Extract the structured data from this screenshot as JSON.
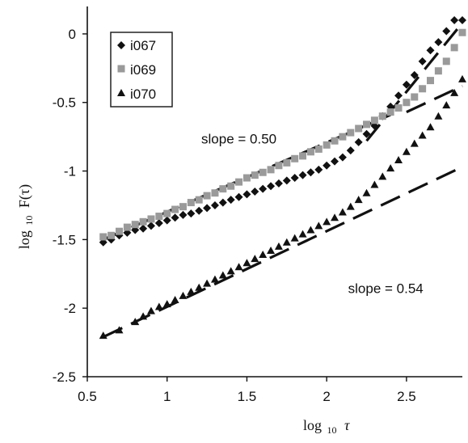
{
  "chart_data": {
    "type": "scatter",
    "title": "",
    "xlabel": {
      "base": "log",
      "sub": "10",
      "symbol": "τ"
    },
    "ylabel": {
      "base": "log",
      "sub": "10",
      "func": "F(τ)"
    },
    "xlim": [
      0.5,
      2.85
    ],
    "ylim": [
      -2.5,
      0.2
    ],
    "xticks": [
      0.5,
      1,
      1.5,
      2,
      2.5
    ],
    "yticks": [
      0,
      -0.5,
      -1,
      -1.5,
      -2,
      -2.5
    ],
    "xtick_labels": [
      "0.5",
      "1",
      "1.5",
      "2",
      "2.5"
    ],
    "ytick_labels": [
      "0",
      "-0.5",
      "-1",
      "-1.5",
      "-2",
      "-2.5"
    ],
    "grid": false,
    "legend_position": "top-left",
    "series": [
      {
        "name": "i067",
        "marker": "diamond",
        "color": "#111111",
        "points": [
          [
            0.6,
            -1.52
          ],
          [
            0.65,
            -1.5
          ],
          [
            0.7,
            -1.47
          ],
          [
            0.75,
            -1.45
          ],
          [
            0.8,
            -1.43
          ],
          [
            0.85,
            -1.42
          ],
          [
            0.9,
            -1.4
          ],
          [
            0.95,
            -1.38
          ],
          [
            1.0,
            -1.36
          ],
          [
            1.05,
            -1.34
          ],
          [
            1.1,
            -1.32
          ],
          [
            1.15,
            -1.31
          ],
          [
            1.2,
            -1.29
          ],
          [
            1.25,
            -1.27
          ],
          [
            1.3,
            -1.25
          ],
          [
            1.35,
            -1.23
          ],
          [
            1.4,
            -1.21
          ],
          [
            1.45,
            -1.19
          ],
          [
            1.5,
            -1.17
          ],
          [
            1.55,
            -1.15
          ],
          [
            1.6,
            -1.13
          ],
          [
            1.65,
            -1.11
          ],
          [
            1.7,
            -1.09
          ],
          [
            1.75,
            -1.07
          ],
          [
            1.8,
            -1.05
          ],
          [
            1.85,
            -1.03
          ],
          [
            1.9,
            -1.01
          ],
          [
            1.95,
            -0.99
          ],
          [
            2.0,
            -0.96
          ],
          [
            2.05,
            -0.93
          ],
          [
            2.1,
            -0.9
          ],
          [
            2.15,
            -0.85
          ],
          [
            2.2,
            -0.79
          ],
          [
            2.25,
            -0.73
          ],
          [
            2.3,
            -0.67
          ],
          [
            2.35,
            -0.6
          ],
          [
            2.4,
            -0.53
          ],
          [
            2.45,
            -0.45
          ],
          [
            2.5,
            -0.37
          ],
          [
            2.55,
            -0.3
          ],
          [
            2.6,
            -0.2
          ],
          [
            2.65,
            -0.12
          ],
          [
            2.7,
            -0.06
          ],
          [
            2.75,
            0.02
          ],
          [
            2.8,
            0.1
          ],
          [
            2.85,
            0.1
          ]
        ]
      },
      {
        "name": "i069",
        "marker": "square",
        "color": "#9a9a9a",
        "points": [
          [
            0.6,
            -1.48
          ],
          [
            0.65,
            -1.47
          ],
          [
            0.7,
            -1.44
          ],
          [
            0.75,
            -1.41
          ],
          [
            0.8,
            -1.39
          ],
          [
            0.85,
            -1.37
          ],
          [
            0.9,
            -1.35
          ],
          [
            0.95,
            -1.33
          ],
          [
            1.0,
            -1.31
          ],
          [
            1.05,
            -1.28
          ],
          [
            1.1,
            -1.26
          ],
          [
            1.15,
            -1.23
          ],
          [
            1.2,
            -1.21
          ],
          [
            1.25,
            -1.18
          ],
          [
            1.3,
            -1.16
          ],
          [
            1.35,
            -1.13
          ],
          [
            1.4,
            -1.11
          ],
          [
            1.45,
            -1.08
          ],
          [
            1.5,
            -1.05
          ],
          [
            1.55,
            -1.03
          ],
          [
            1.6,
            -1.01
          ],
          [
            1.65,
            -0.99
          ],
          [
            1.7,
            -0.96
          ],
          [
            1.75,
            -0.94
          ],
          [
            1.8,
            -0.91
          ],
          [
            1.85,
            -0.89
          ],
          [
            1.9,
            -0.86
          ],
          [
            1.95,
            -0.84
          ],
          [
            2.0,
            -0.81
          ],
          [
            2.05,
            -0.78
          ],
          [
            2.1,
            -0.75
          ],
          [
            2.15,
            -0.72
          ],
          [
            2.2,
            -0.69
          ],
          [
            2.25,
            -0.66
          ],
          [
            2.3,
            -0.63
          ],
          [
            2.35,
            -0.6
          ],
          [
            2.4,
            -0.57
          ],
          [
            2.45,
            -0.54
          ],
          [
            2.5,
            -0.5
          ],
          [
            2.55,
            -0.46
          ],
          [
            2.6,
            -0.4
          ],
          [
            2.65,
            -0.34
          ],
          [
            2.7,
            -0.27
          ],
          [
            2.75,
            -0.2
          ],
          [
            2.8,
            -0.1
          ],
          [
            2.85,
            0.01
          ]
        ]
      },
      {
        "name": "i070",
        "marker": "triangle",
        "color": "#111111",
        "points": [
          [
            0.6,
            -2.2
          ],
          [
            0.7,
            -2.16
          ],
          [
            0.8,
            -2.1
          ],
          [
            0.85,
            -2.06
          ],
          [
            0.9,
            -2.02
          ],
          [
            0.95,
            -1.99
          ],
          [
            1.0,
            -1.97
          ],
          [
            1.05,
            -1.94
          ],
          [
            1.1,
            -1.91
          ],
          [
            1.15,
            -1.88
          ],
          [
            1.2,
            -1.85
          ],
          [
            1.25,
            -1.82
          ],
          [
            1.3,
            -1.79
          ],
          [
            1.35,
            -1.76
          ],
          [
            1.4,
            -1.73
          ],
          [
            1.45,
            -1.7
          ],
          [
            1.5,
            -1.67
          ],
          [
            1.55,
            -1.64
          ],
          [
            1.6,
            -1.61
          ],
          [
            1.65,
            -1.58
          ],
          [
            1.7,
            -1.55
          ],
          [
            1.75,
            -1.52
          ],
          [
            1.8,
            -1.49
          ],
          [
            1.85,
            -1.46
          ],
          [
            1.9,
            -1.43
          ],
          [
            1.95,
            -1.4
          ],
          [
            2.0,
            -1.37
          ],
          [
            2.05,
            -1.34
          ],
          [
            2.1,
            -1.3
          ],
          [
            2.15,
            -1.26
          ],
          [
            2.2,
            -1.21
          ],
          [
            2.25,
            -1.16
          ],
          [
            2.3,
            -1.1
          ],
          [
            2.35,
            -1.04
          ],
          [
            2.4,
            -0.98
          ],
          [
            2.45,
            -0.92
          ],
          [
            2.5,
            -0.86
          ],
          [
            2.55,
            -0.8
          ],
          [
            2.6,
            -0.74
          ],
          [
            2.65,
            -0.68
          ],
          [
            2.7,
            -0.6
          ],
          [
            2.75,
            -0.52
          ],
          [
            2.8,
            -0.43
          ],
          [
            2.85,
            -0.33
          ]
        ]
      }
    ],
    "fit_lines": [
      {
        "from": [
          0.6,
          -1.5
        ],
        "to": [
          2.4,
          -0.59
        ]
      },
      {
        "from": [
          0.6,
          -2.21
        ],
        "to": [
          2.85,
          -0.97
        ]
      },
      {
        "from": [
          2.25,
          -0.78
        ],
        "to": [
          2.85,
          0.08
        ]
      },
      {
        "from": [
          2.5,
          -0.57
        ],
        "to": [
          2.85,
          -0.38
        ]
      }
    ],
    "annotations": [
      {
        "text": "slope = 0.50",
        "x": 1.45,
        "y": -0.8
      },
      {
        "text": "slope = 0.54",
        "x": 2.37,
        "y": -1.89
      }
    ]
  }
}
